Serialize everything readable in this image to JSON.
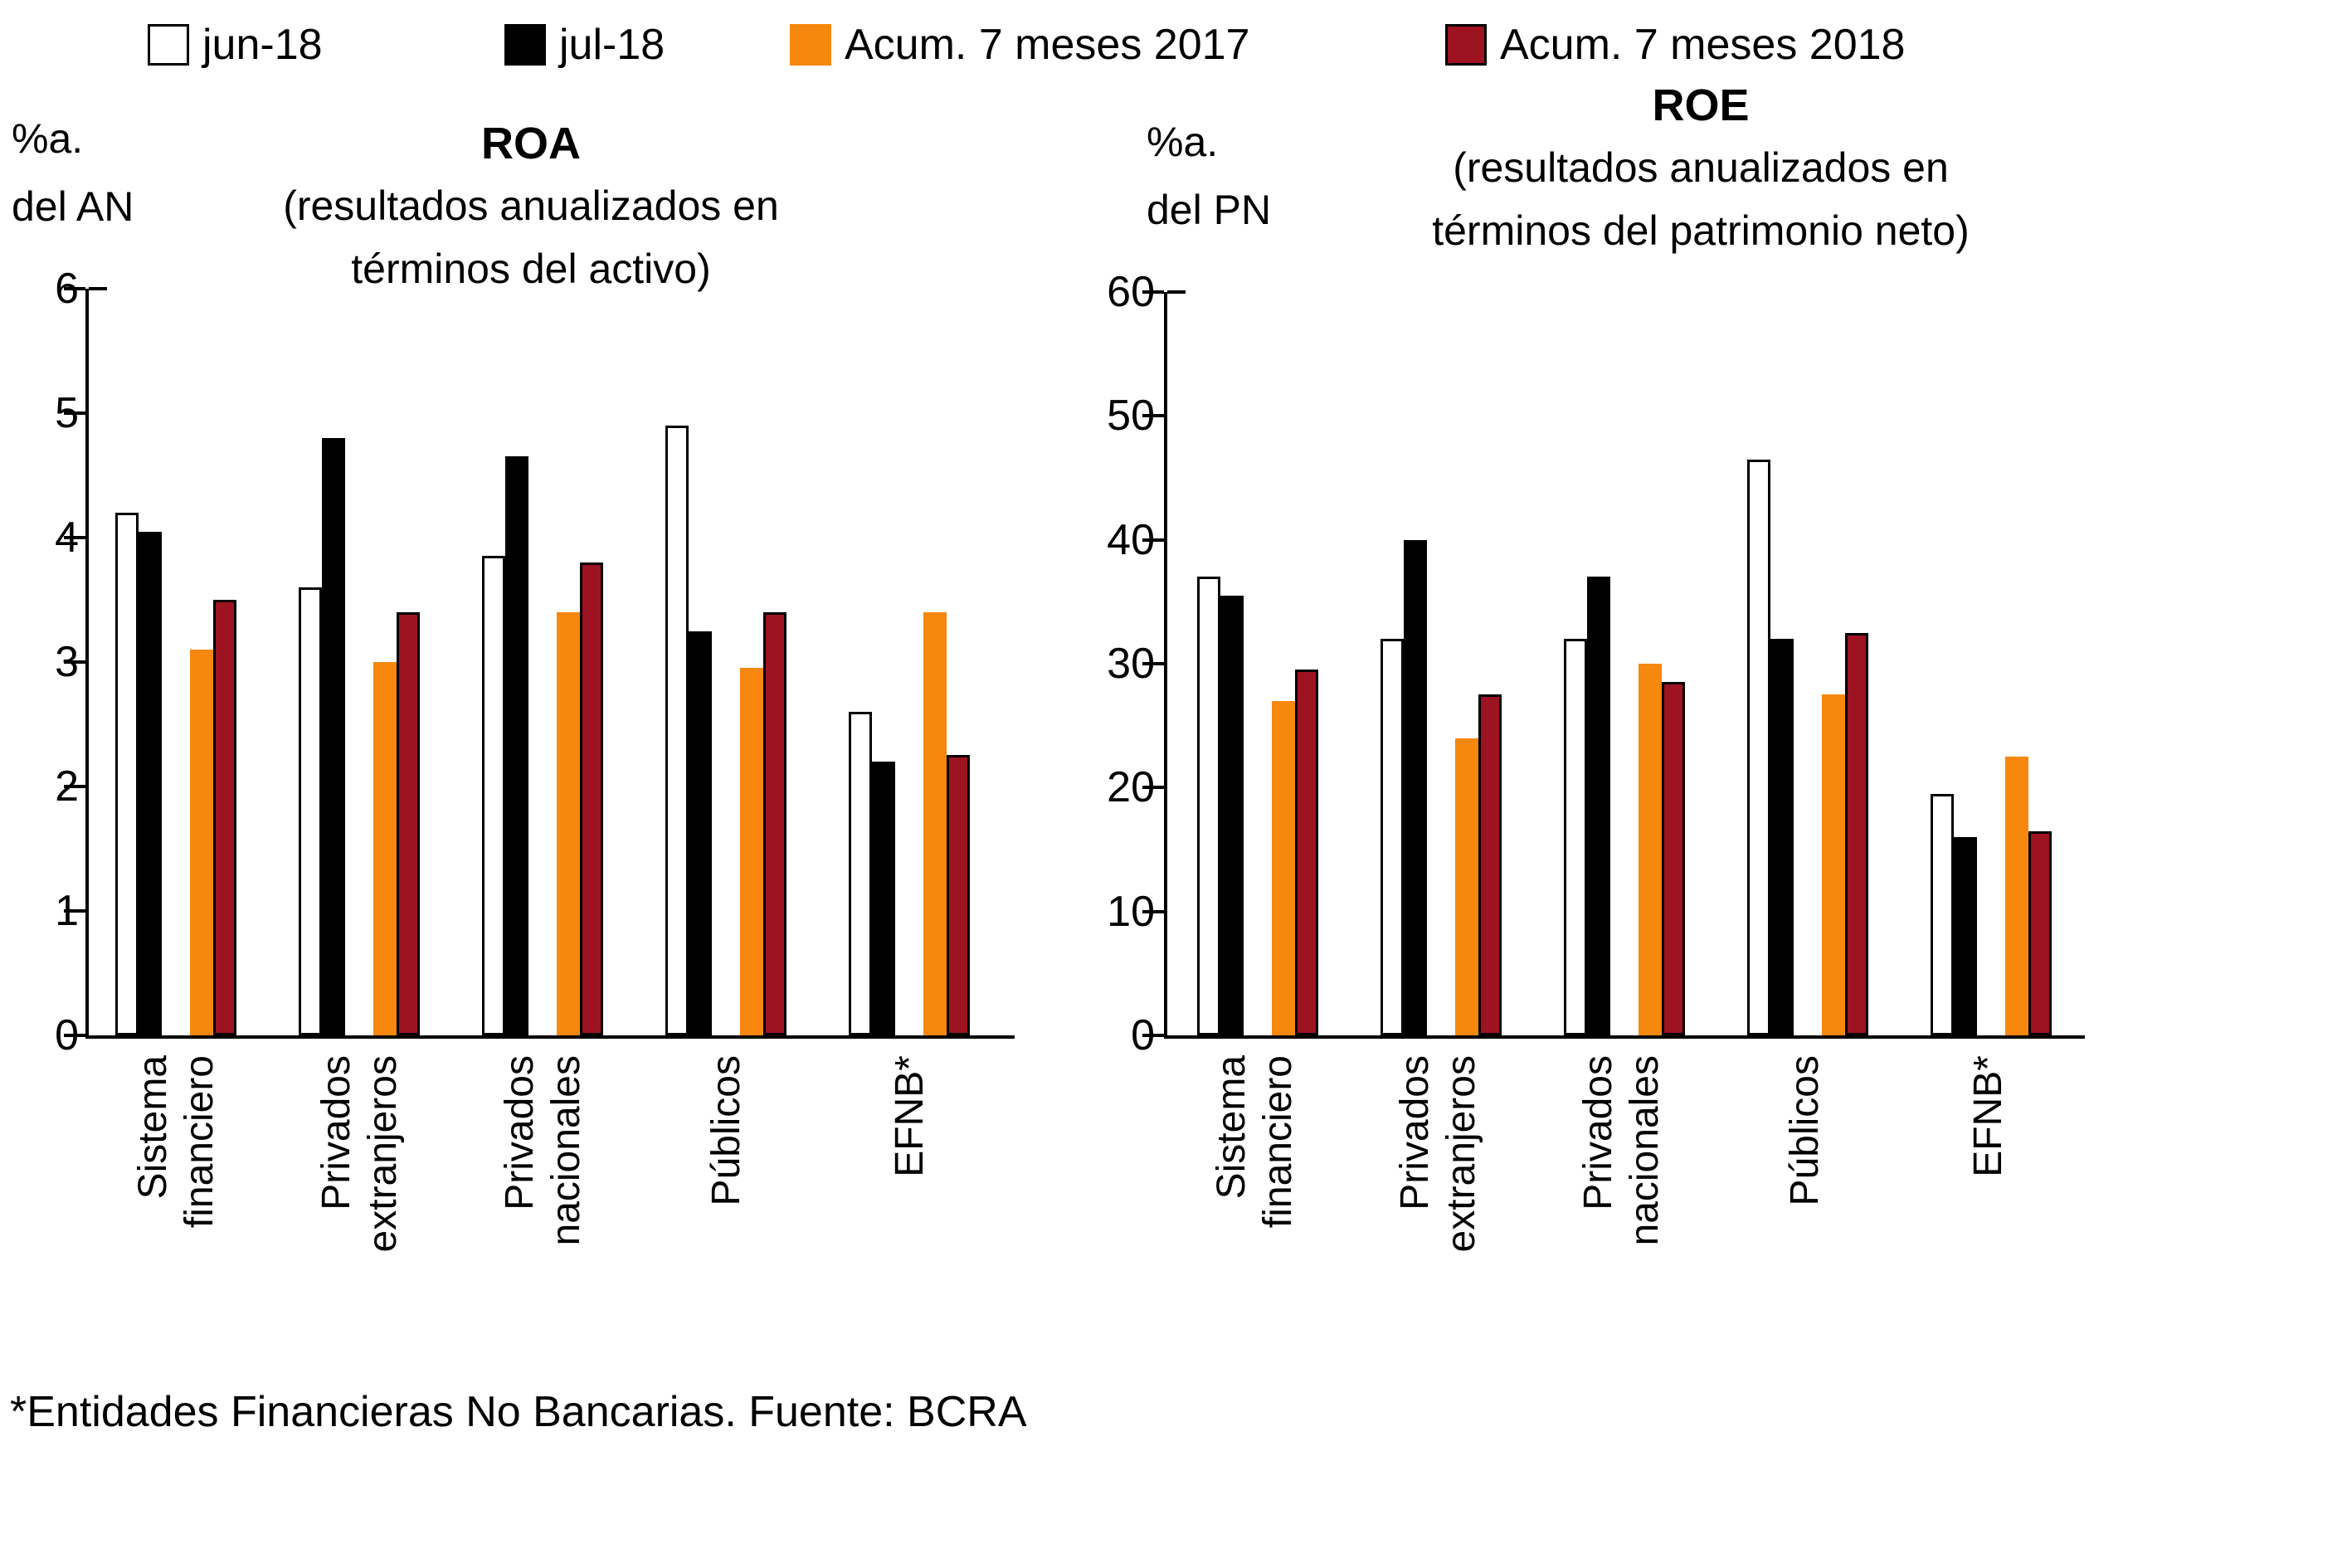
{
  "footnote": "*Entidades Financieras No Bancarias. Fuente: BCRA",
  "colors": {
    "jun_18_fill": "#FFFFFF",
    "jul_18_fill": "#000000",
    "acum_2017_fill": "#F6870F",
    "acum_2018_fill": "#9D1322",
    "outline": "#000000",
    "axis": "#000000",
    "background": "#FFFFFF"
  },
  "chart_data": [
    {
      "type": "bar",
      "title": "ROA",
      "subtitle_lines": [
        "(resultados anualizados en",
        "términos del activo)"
      ],
      "unit_lines": [
        "%a.",
        "del AN"
      ],
      "categories": [
        "Sistema financiero",
        "Privados extranjeros",
        "Privados nacionales",
        "Públicos",
        "EFNB*"
      ],
      "series": [
        {
          "name": "jun-18",
          "fill": "#FFFFFF",
          "outline": "#000000",
          "values": [
            4.2,
            3.6,
            3.85,
            4.9,
            2.6
          ]
        },
        {
          "name": "jul-18",
          "fill": "#000000",
          "outline": "#000000",
          "values": [
            4.05,
            4.8,
            4.65,
            3.25,
            2.2
          ]
        },
        {
          "name": "Acum. 7 meses 2017",
          "fill": "#F6870F",
          "outline": null,
          "values": [
            3.1,
            3.0,
            3.4,
            2.95,
            3.4
          ]
        },
        {
          "name": "Acum. 7 meses 2018",
          "fill": "#9D1322",
          "outline": "#000000",
          "values": [
            3.5,
            3.4,
            3.8,
            3.4,
            2.25
          ]
        }
      ],
      "ylim": [
        0,
        6
      ],
      "ytick_step": 1,
      "grid": "off",
      "legend_position": "top"
    },
    {
      "type": "bar",
      "title": "ROE",
      "subtitle_lines": [
        "(resultados anualizados en",
        "términos del patrimonio neto)"
      ],
      "unit_lines": [
        "%a.",
        "del PN"
      ],
      "categories": [
        "Sistema financiero",
        "Privados extranjeros",
        "Privados nacionales",
        "Públicos",
        "EFNB*"
      ],
      "series": [
        {
          "name": "jun-18",
          "fill": "#FFFFFF",
          "outline": "#000000",
          "values": [
            37,
            32,
            32,
            46.5,
            19.5
          ]
        },
        {
          "name": "jul-18",
          "fill": "#000000",
          "outline": "#000000",
          "values": [
            35.5,
            40,
            37,
            32,
            16
          ]
        },
        {
          "name": "Acum. 7 meses 2017",
          "fill": "#F6870F",
          "outline": null,
          "values": [
            27,
            24,
            30,
            27.5,
            22.5
          ]
        },
        {
          "name": "Acum. 7 meses 2018",
          "fill": "#9D1322",
          "outline": "#000000",
          "values": [
            29.5,
            27.5,
            28.5,
            32.5,
            16.5
          ]
        }
      ],
      "ylim": [
        0,
        60
      ],
      "ytick_step": 10,
      "grid": "off",
      "legend_position": "top"
    }
  ]
}
